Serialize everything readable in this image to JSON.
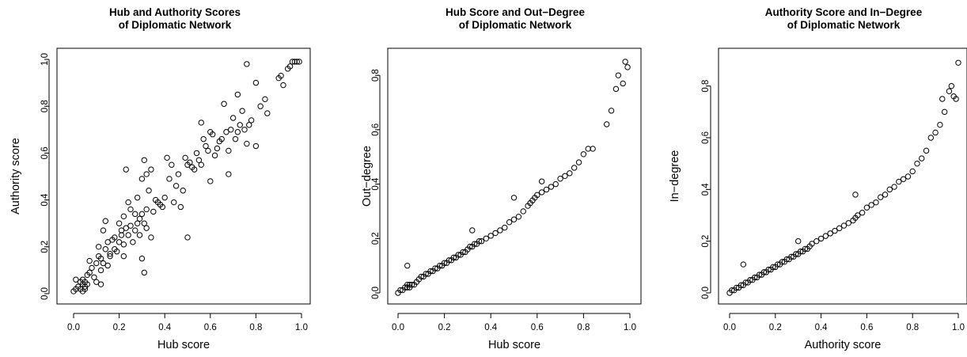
{
  "chart_data": [
    {
      "type": "scatter",
      "title": "Hub and Authority Scores\nof Diplomatic Network",
      "xlabel": "Hub score",
      "ylabel": "Authority score",
      "xlim": [
        0,
        1.0
      ],
      "ylim": [
        0,
        1.0
      ],
      "xticks": [
        0.0,
        0.2,
        0.4,
        0.6,
        0.8,
        1.0
      ],
      "yticks": [
        0.0,
        0.2,
        0.4,
        0.6,
        0.8,
        1.0
      ],
      "xtick_labels": [
        "0.0",
        "0.2",
        "0.4",
        "0.6",
        "0.8",
        "1.0"
      ],
      "ytick_labels": [
        "0.0",
        "0.2",
        "0.4",
        "0.6",
        "0.8",
        "1.0"
      ],
      "grid": false,
      "x": [
        0.0,
        0.01,
        0.01,
        0.02,
        0.03,
        0.03,
        0.04,
        0.04,
        0.04,
        0.05,
        0.05,
        0.05,
        0.06,
        0.06,
        0.07,
        0.07,
        0.08,
        0.09,
        0.1,
        0.1,
        0.11,
        0.11,
        0.12,
        0.12,
        0.13,
        0.13,
        0.14,
        0.14,
        0.15,
        0.15,
        0.16,
        0.16,
        0.17,
        0.18,
        0.18,
        0.19,
        0.2,
        0.2,
        0.21,
        0.21,
        0.22,
        0.22,
        0.23,
        0.23,
        0.24,
        0.24,
        0.25,
        0.25,
        0.26,
        0.27,
        0.27,
        0.28,
        0.28,
        0.29,
        0.29,
        0.3,
        0.3,
        0.31,
        0.31,
        0.32,
        0.32,
        0.33,
        0.34,
        0.34,
        0.35,
        0.36,
        0.37,
        0.38,
        0.39,
        0.4,
        0.41,
        0.42,
        0.43,
        0.44,
        0.45,
        0.46,
        0.47,
        0.48,
        0.49,
        0.5,
        0.51,
        0.52,
        0.53,
        0.54,
        0.55,
        0.56,
        0.57,
        0.58,
        0.59,
        0.6,
        0.61,
        0.62,
        0.63,
        0.64,
        0.65,
        0.66,
        0.67,
        0.68,
        0.69,
        0.7,
        0.71,
        0.72,
        0.73,
        0.74,
        0.75,
        0.76,
        0.77,
        0.78,
        0.8,
        0.82,
        0.84,
        0.85,
        0.9,
        0.91,
        0.92,
        0.94,
        0.95,
        0.96,
        0.97,
        0.98,
        0.99,
        0.12,
        0.22,
        0.3,
        0.31,
        0.32,
        0.5,
        0.56,
        0.6,
        0.68,
        0.72,
        0.76,
        0.8
      ],
      "y": [
        0.01,
        0.06,
        0.02,
        0.03,
        0.05,
        0.02,
        0.04,
        0.06,
        0.01,
        0.03,
        0.05,
        0.02,
        0.04,
        0.08,
        0.14,
        0.09,
        0.11,
        0.07,
        0.05,
        0.13,
        0.16,
        0.2,
        0.1,
        0.15,
        0.13,
        0.27,
        0.19,
        0.31,
        0.12,
        0.22,
        0.17,
        0.16,
        0.23,
        0.19,
        0.24,
        0.18,
        0.22,
        0.3,
        0.25,
        0.27,
        0.21,
        0.33,
        0.53,
        0.28,
        0.39,
        0.25,
        0.29,
        0.36,
        0.22,
        0.27,
        0.34,
        0.3,
        0.41,
        0.32,
        0.25,
        0.34,
        0.49,
        0.57,
        0.3,
        0.51,
        0.36,
        0.44,
        0.24,
        0.53,
        0.35,
        0.4,
        0.39,
        0.38,
        0.37,
        0.41,
        0.58,
        0.49,
        0.55,
        0.39,
        0.46,
        0.51,
        0.37,
        0.44,
        0.58,
        0.55,
        0.56,
        0.54,
        0.53,
        0.6,
        0.57,
        0.73,
        0.66,
        0.63,
        0.61,
        0.69,
        0.68,
        0.59,
        0.62,
        0.65,
        0.66,
        0.81,
        0.69,
        0.61,
        0.7,
        0.75,
        0.66,
        0.85,
        0.72,
        0.78,
        0.7,
        0.64,
        0.72,
        0.74,
        0.9,
        0.8,
        0.83,
        0.77,
        0.92,
        0.93,
        0.89,
        0.96,
        0.97,
        0.99,
        0.99,
        0.99,
        0.99,
        0.04,
        0.16,
        0.15,
        0.09,
        0.28,
        0.24,
        0.55,
        0.48,
        0.51,
        0.69,
        0.98,
        0.63
      ]
    },
    {
      "type": "scatter",
      "title": "Hub Score and Out−Degree\nof Diplomatic Network",
      "xlabel": "Hub score",
      "ylabel": "Out−degree",
      "xlim": [
        0,
        1.0
      ],
      "ylim": [
        0,
        0.85
      ],
      "xticks": [
        0.0,
        0.2,
        0.4,
        0.6,
        0.8,
        1.0
      ],
      "yticks": [
        0.0,
        0.2,
        0.4,
        0.6,
        0.8
      ],
      "xtick_labels": [
        "0.0",
        "0.2",
        "0.4",
        "0.6",
        "0.8",
        "1.0"
      ],
      "ytick_labels": [
        "0.0",
        "0.2",
        "0.4",
        "0.6",
        "0.8"
      ],
      "grid": false,
      "x": [
        0.0,
        0.01,
        0.02,
        0.03,
        0.04,
        0.04,
        0.05,
        0.05,
        0.06,
        0.07,
        0.08,
        0.09,
        0.1,
        0.11,
        0.12,
        0.13,
        0.14,
        0.15,
        0.16,
        0.17,
        0.18,
        0.19,
        0.2,
        0.21,
        0.22,
        0.23,
        0.24,
        0.25,
        0.26,
        0.27,
        0.28,
        0.29,
        0.3,
        0.31,
        0.32,
        0.33,
        0.34,
        0.35,
        0.36,
        0.38,
        0.4,
        0.42,
        0.44,
        0.46,
        0.48,
        0.5,
        0.52,
        0.54,
        0.56,
        0.57,
        0.58,
        0.59,
        0.6,
        0.62,
        0.64,
        0.66,
        0.68,
        0.7,
        0.72,
        0.74,
        0.76,
        0.78,
        0.8,
        0.82,
        0.84,
        0.9,
        0.92,
        0.94,
        0.95,
        0.97,
        0.98,
        0.99,
        0.04,
        0.32,
        0.5,
        0.62
      ],
      "y": [
        0.0,
        0.01,
        0.01,
        0.02,
        0.02,
        0.03,
        0.02,
        0.03,
        0.03,
        0.03,
        0.04,
        0.05,
        0.06,
        0.06,
        0.07,
        0.07,
        0.08,
        0.08,
        0.09,
        0.09,
        0.1,
        0.1,
        0.11,
        0.11,
        0.12,
        0.12,
        0.13,
        0.13,
        0.14,
        0.14,
        0.15,
        0.15,
        0.16,
        0.17,
        0.17,
        0.18,
        0.18,
        0.19,
        0.19,
        0.2,
        0.21,
        0.22,
        0.23,
        0.24,
        0.26,
        0.27,
        0.28,
        0.3,
        0.32,
        0.33,
        0.34,
        0.35,
        0.36,
        0.37,
        0.38,
        0.39,
        0.4,
        0.42,
        0.43,
        0.44,
        0.46,
        0.48,
        0.51,
        0.53,
        0.53,
        0.62,
        0.67,
        0.75,
        0.8,
        0.77,
        0.85,
        0.83,
        0.1,
        0.23,
        0.35,
        0.41
      ]
    },
    {
      "type": "scatter",
      "title": "Authority Score and In−Degree\nof Diplomatic Network",
      "xlabel": "Authority score",
      "ylabel": "In−degree",
      "xlim": [
        0,
        1.0
      ],
      "ylim": [
        0,
        0.9
      ],
      "xticks": [
        0.0,
        0.2,
        0.4,
        0.6,
        0.8,
        1.0
      ],
      "yticks": [
        0.0,
        0.2,
        0.4,
        0.6,
        0.8
      ],
      "xtick_labels": [
        "0.0",
        "0.2",
        "0.4",
        "0.6",
        "0.8",
        "1.0"
      ],
      "ytick_labels": [
        "0.0",
        "0.2",
        "0.4",
        "0.6",
        "0.8"
      ],
      "grid": false,
      "x": [
        0.0,
        0.01,
        0.02,
        0.03,
        0.04,
        0.05,
        0.06,
        0.07,
        0.08,
        0.09,
        0.1,
        0.11,
        0.12,
        0.13,
        0.14,
        0.15,
        0.16,
        0.17,
        0.18,
        0.19,
        0.2,
        0.21,
        0.22,
        0.23,
        0.24,
        0.25,
        0.26,
        0.27,
        0.28,
        0.29,
        0.3,
        0.31,
        0.32,
        0.33,
        0.34,
        0.35,
        0.36,
        0.38,
        0.4,
        0.42,
        0.44,
        0.46,
        0.48,
        0.5,
        0.52,
        0.54,
        0.55,
        0.56,
        0.58,
        0.6,
        0.62,
        0.64,
        0.66,
        0.68,
        0.7,
        0.72,
        0.74,
        0.76,
        0.78,
        0.8,
        0.82,
        0.84,
        0.86,
        0.88,
        0.9,
        0.92,
        0.93,
        0.94,
        0.96,
        0.97,
        0.98,
        0.99,
        1.0,
        0.06,
        0.3,
        0.55
      ],
      "y": [
        0.0,
        0.01,
        0.01,
        0.02,
        0.02,
        0.03,
        0.03,
        0.04,
        0.04,
        0.05,
        0.05,
        0.06,
        0.06,
        0.07,
        0.07,
        0.08,
        0.08,
        0.09,
        0.09,
        0.1,
        0.1,
        0.11,
        0.11,
        0.12,
        0.12,
        0.13,
        0.13,
        0.14,
        0.14,
        0.15,
        0.15,
        0.16,
        0.16,
        0.17,
        0.17,
        0.18,
        0.19,
        0.2,
        0.21,
        0.22,
        0.23,
        0.24,
        0.25,
        0.26,
        0.27,
        0.28,
        0.29,
        0.3,
        0.31,
        0.33,
        0.34,
        0.35,
        0.37,
        0.38,
        0.4,
        0.41,
        0.43,
        0.44,
        0.45,
        0.47,
        0.5,
        0.52,
        0.55,
        0.6,
        0.62,
        0.65,
        0.75,
        0.7,
        0.78,
        0.8,
        0.76,
        0.75,
        0.89,
        0.11,
        0.2,
        0.38
      ]
    }
  ]
}
